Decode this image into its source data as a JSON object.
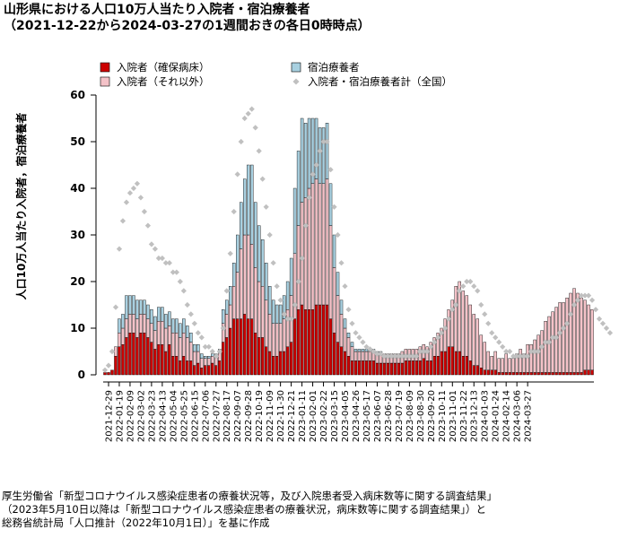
{
  "title_lines": [
    "山形県における人口10万人当たり入院者・宿泊療養者",
    "（2021-12-22から2024-03-27の1週間おきの各日0時時点）"
  ],
  "source_lines": [
    "厚生労働省「新型コロナウイルス感染症患者の療養状況等，及び入院患者受入病床数等に関する調査結果」",
    "（2023年5月10日以降は「新型コロナウイルス感染症患者の療養状況，病床数等に関する調査結果」）と",
    "総務省統計局「人口推計（2022年10月1日）」を基に作成"
  ],
  "colors": {
    "severe": "#cc0000",
    "other": "#f4c2c8",
    "hotel": "#a8d0e0",
    "national": "#c0c0c0"
  },
  "chart_data": {
    "type": "bar",
    "stacked": true,
    "ylabel": "人口10万人当たり入院者，宿泊療養者",
    "ylim": [
      0,
      60
    ],
    "yticks": [
      0,
      10,
      20,
      30,
      40,
      50,
      60
    ],
    "x_start": "2021-12-22",
    "x_step_days": 7,
    "x_tick_labels": [
      "2021-12-29",
      "2022-01-19",
      "2022-02-09",
      "2022-03-02",
      "2022-03-23",
      "2022-04-13",
      "2022-05-04",
      "2022-05-25",
      "2022-06-15",
      "2022-07-06",
      "2022-07-27",
      "2022-08-17",
      "2022-09-07",
      "2022-09-28",
      "2022-10-19",
      "2022-11-09",
      "2022-11-30",
      "2022-12-21",
      "2023-01-11",
      "2023-02-01",
      "2023-02-22",
      "2023-03-15",
      "2023-04-05",
      "2023-04-26",
      "2023-05-17",
      "2023-06-07",
      "2023-06-28",
      "2023-07-19",
      "2023-08-09",
      "2023-08-30",
      "2023-09-20",
      "2023-10-11",
      "2023-11-01",
      "2023-11-22",
      "2023-12-13",
      "2024-01-03",
      "2024-01-24",
      "2024-02-14",
      "2024-03-06",
      "2024-03-27"
    ],
    "legend": [
      "入院者（確保病床）",
      "宿泊療養者",
      "入院者（それ以外）",
      "入院者・宿泊療養者計（全国）"
    ],
    "legend_position": "top",
    "grid": false,
    "series": [
      {
        "name": "入院者（確保病床）",
        "role": "severe",
        "values": [
          0.5,
          0.5,
          1,
          4,
          6,
          6.5,
          8,
          9,
          9,
          8,
          9,
          9,
          8,
          7,
          5.5,
          6.5,
          6.5,
          5,
          6.5,
          4,
          4,
          3,
          4,
          3,
          3,
          2,
          2.5,
          1.5,
          2,
          2,
          2.5,
          2,
          3,
          7,
          8,
          10,
          12,
          12,
          12,
          13,
          12,
          12,
          9,
          8,
          8,
          6,
          5,
          4,
          4,
          5,
          5,
          6,
          7,
          12,
          14,
          15,
          14,
          14,
          14,
          15,
          15,
          15,
          15,
          12,
          9,
          7,
          6,
          5,
          4,
          3,
          3,
          3,
          3,
          3,
          3,
          3,
          2.5,
          2.5,
          2.5,
          2.5,
          2.5,
          2.5,
          2.5,
          2.5,
          3,
          3,
          3,
          3,
          3,
          3.5,
          3,
          3,
          4,
          4,
          5,
          5,
          6,
          6,
          5,
          5,
          4,
          4,
          3,
          2,
          2,
          1.5,
          1,
          1,
          1,
          1,
          0.5,
          0.5,
          0.5,
          0.5,
          0.5,
          0.5,
          0.5,
          0.5,
          0.5,
          0.5,
          0.5,
          0.5,
          0.5,
          0.5,
          0.5,
          0.5,
          0.5,
          0.5,
          0.5,
          0.5,
          0.5,
          0.5,
          0.5,
          0.5,
          1,
          1,
          1
        ]
      },
      {
        "name": "入院者（それ以外）",
        "role": "other",
        "values": [
          0,
          0,
          0,
          2,
          3,
          3.5,
          4,
          4,
          4,
          4,
          4,
          4,
          4,
          4,
          4,
          5,
          5,
          5,
          4,
          5,
          5,
          5,
          5,
          5,
          4,
          3,
          2.5,
          2,
          1.5,
          1.5,
          1.5,
          2,
          2,
          4,
          5,
          5,
          7,
          10,
          15,
          17,
          18,
          16,
          14,
          12,
          11,
          10,
          8,
          7,
          7,
          6,
          7,
          8,
          10,
          14,
          18,
          22,
          24,
          26,
          27,
          27,
          26,
          26,
          27,
          20,
          14,
          10,
          7,
          5,
          4,
          3,
          2,
          2,
          2,
          2,
          2,
          2,
          2,
          2,
          2,
          2,
          2,
          2,
          2,
          2.5,
          2.5,
          2.5,
          2.5,
          2.5,
          3,
          3,
          3,
          4,
          4,
          5,
          5,
          7,
          8,
          10,
          14,
          15,
          14,
          13,
          12,
          11,
          10,
          7,
          6,
          4,
          3,
          4,
          3,
          3,
          4,
          3,
          3,
          4,
          5,
          4,
          6,
          6,
          7,
          8,
          9,
          11,
          12,
          13,
          14,
          15,
          15,
          16,
          17,
          18,
          17,
          16,
          15,
          14,
          13,
          15,
          12,
          10,
          11,
          9
        ]
      },
      {
        "name": "宿泊療養者",
        "role": "hotel",
        "values": [
          0,
          0,
          0,
          0,
          3,
          3,
          5,
          4,
          4,
          4,
          3,
          3,
          3,
          3,
          3,
          3,
          3,
          3,
          3,
          3,
          3,
          3,
          3,
          2.5,
          2,
          1.5,
          1.5,
          1,
          0.5,
          0.5,
          0.5,
          0.5,
          0.5,
          3,
          3,
          4,
          5,
          8,
          10,
          12,
          15,
          17,
          14,
          12,
          10,
          8,
          6,
          5,
          4,
          4,
          5,
          6,
          8,
          14,
          16,
          18,
          16,
          15,
          14,
          13,
          12,
          12,
          12,
          9,
          7,
          5,
          3,
          2,
          1,
          1,
          0.5,
          0.5,
          0.5,
          0.5,
          0.5,
          0.5,
          0.5,
          0.5,
          0,
          0,
          0,
          0,
          0,
          0,
          0,
          0,
          0,
          0,
          0,
          0,
          0,
          0,
          0,
          0,
          0,
          0,
          0,
          0,
          0,
          0,
          0,
          0,
          0,
          0,
          0,
          0,
          0,
          0,
          0,
          0,
          0,
          0,
          0,
          0,
          0,
          0,
          0,
          0,
          0,
          0,
          0,
          0,
          0,
          0,
          0,
          0,
          0,
          0,
          0,
          0,
          0,
          0,
          0,
          0,
          0,
          0,
          0,
          0,
          0,
          0,
          0,
          0,
          0,
          0,
          0
        ]
      },
      {
        "name": "入院者・宿泊療養者計（全国）",
        "role": "national",
        "kind": "scatter",
        "values": [
          1,
          2,
          5,
          14.5,
          27,
          33,
          37,
          39,
          40,
          41,
          38,
          35,
          32,
          28,
          27,
          25,
          25,
          24,
          24,
          22,
          22,
          20,
          18,
          15,
          13,
          11,
          9,
          8,
          6,
          6,
          5,
          4,
          5,
          10,
          18,
          26,
          35,
          43,
          50,
          55,
          56,
          57,
          53,
          48,
          42,
          36,
          30,
          24,
          19,
          16,
          13,
          12,
          12,
          15,
          20,
          25,
          32,
          38,
          43,
          45,
          48,
          50,
          50,
          44,
          36,
          30,
          24,
          19,
          14,
          11,
          9,
          8,
          7,
          6,
          5.5,
          5,
          4.5,
          4.5,
          4,
          4,
          4,
          4,
          4,
          4,
          4,
          4,
          4,
          4,
          5,
          5,
          5,
          6,
          7,
          8,
          9,
          10,
          12,
          14,
          15,
          18,
          19,
          20,
          20,
          19,
          18,
          15,
          13,
          11,
          9,
          8,
          7,
          6,
          5,
          5,
          4,
          4,
          4,
          4,
          4,
          5,
          5,
          5,
          6,
          7,
          7,
          8,
          8,
          9,
          10,
          11,
          13,
          15,
          16,
          17,
          17,
          17,
          16,
          14,
          12,
          11,
          10,
          9
        ]
      }
    ]
  }
}
